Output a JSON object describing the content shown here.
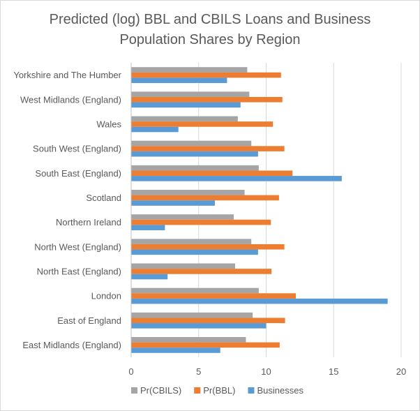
{
  "chart_data": {
    "type": "bar",
    "orientation": "horizontal",
    "title_line1": "Predicted (log) BBL and CBILS Loans and Business",
    "title_line2": "Population Shares by Region",
    "categories": [
      "Yorkshire and The Humber",
      "West Midlands (England)",
      "Wales",
      "South West (England)",
      "South East (England)",
      "Scotland",
      "Northern Ireland",
      "North West (England)",
      "North East (England)",
      "London",
      "East of England",
      "East Midlands (England)"
    ],
    "series": [
      {
        "name": "Pr(CBILS)",
        "color": "#a5a5a5",
        "values": [
          8.6,
          8.75,
          7.9,
          8.9,
          9.45,
          8.4,
          7.6,
          8.9,
          7.7,
          9.45,
          9.0,
          8.5
        ]
      },
      {
        "name": "Pr(BBL)",
        "color": "#ed7d31",
        "values": [
          11.1,
          11.2,
          10.5,
          11.35,
          11.95,
          10.95,
          10.35,
          11.35,
          10.4,
          12.2,
          11.4,
          11.0
        ]
      },
      {
        "name": "Businesses",
        "color": "#5b9bd5",
        "values": [
          7.1,
          8.1,
          3.5,
          9.4,
          15.6,
          6.2,
          2.5,
          9.4,
          2.7,
          19.0,
          10.0,
          6.6
        ]
      }
    ],
    "xlim": [
      0,
      20
    ],
    "xticks": [
      "0",
      "5",
      "10",
      "15",
      "20"
    ],
    "grid": true,
    "legend_position": "bottom"
  }
}
